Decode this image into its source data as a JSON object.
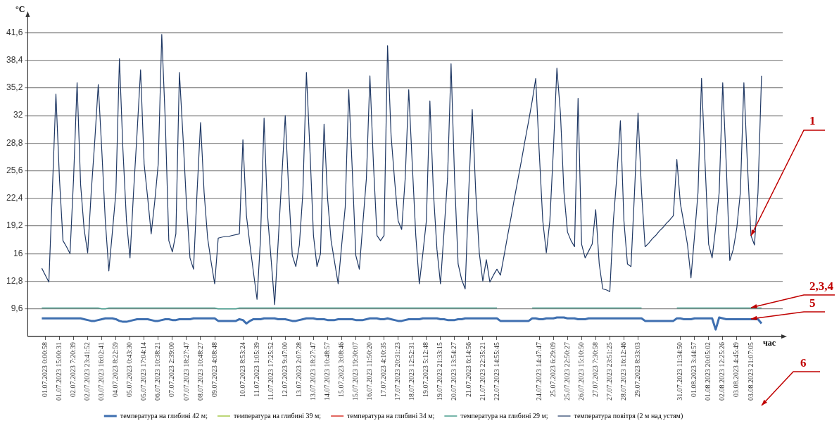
{
  "chart_data": {
    "type": "line",
    "ylabel": "°C",
    "xlabel": "час",
    "ylim": [
      6.4,
      43.6
    ],
    "yticks": [
      {
        "value": 9.6,
        "label": "9,6"
      },
      {
        "value": 12.8,
        "label": "12,8"
      },
      16,
      {
        "value": 19.2,
        "label": "19,2"
      },
      {
        "value": 22.4,
        "label": "22,4"
      },
      {
        "value": 25.6,
        "label": "25,6"
      },
      {
        "value": 28.8,
        "label": "28,8"
      },
      32,
      {
        "value": 35.2,
        "label": "35,2"
      },
      {
        "value": 38.4,
        "label": "38,4"
      },
      {
        "value": 41.6,
        "label": "41,6"
      }
    ],
    "categories": [
      null,
      null,
      null,
      null,
      null,
      "01.07.2023 0:00:58",
      null,
      null,
      null,
      "01.07.2023 15:00:31",
      null,
      null,
      null,
      "02.07.2023 7:20:39",
      null,
      null,
      null,
      "02.07.2023 23:41:52",
      null,
      null,
      null,
      "03.07.2023 16:02:41",
      null,
      null,
      null,
      "04.07.2023 8:22:59",
      null,
      null,
      null,
      "05.07.2023 0:43:30",
      null,
      null,
      null,
      "05.07.2023 17:04:14",
      null,
      null,
      null,
      "06.07.2023 10:38:21",
      null,
      null,
      null,
      "07.07.2023 2:39:00",
      null,
      null,
      null,
      "07.07.2023 18:27:47",
      null,
      null,
      null,
      "08.07.2023 10:48:27",
      null,
      null,
      null,
      "09.07.2023 4:08:48",
      null,
      null,
      null,
      null,
      null,
      null,
      null,
      "10.07.2023 8:53:24",
      null,
      null,
      null,
      "11.07.2023 1:05:39",
      null,
      null,
      null,
      "11.07.2023 17:25:52",
      null,
      null,
      null,
      "12.07.2023 9:47:00",
      null,
      null,
      null,
      "13.07.2023 2:07:28",
      null,
      null,
      null,
      "13.07.2023 18:27:47",
      null,
      null,
      null,
      "14.07.2023 10:48:57",
      null,
      null,
      null,
      "15.07.2023 3:08:46",
      null,
      null,
      null,
      "15.07.2023 19:30:07",
      null,
      null,
      null,
      "16.07.2023 11:50:20",
      null,
      null,
      null,
      "17.07.2023 4:10:35",
      null,
      null,
      null,
      "17.07.2023 20:31:23",
      null,
      null,
      null,
      "18.07.2023 12:52:31",
      null,
      null,
      null,
      "19.07.2023 5:12:48",
      null,
      null,
      null,
      "19.07.2023 21:33:15",
      null,
      null,
      null,
      "20.07.2023 13:54:27",
      null,
      null,
      null,
      "21.07.2023 6:14:56",
      null,
      null,
      null,
      "21.07.2023 22:35:21",
      null,
      null,
      null,
      "22.07.2023 14:55:45",
      null,
      null,
      null,
      null,
      null,
      null,
      null,
      null,
      null,
      null,
      null,
      "24.07.2023 14:47:47",
      null,
      null,
      null,
      "25.07.2023 6:29:09",
      null,
      null,
      null,
      "25.07.2023 22:50:27",
      null,
      null,
      null,
      "26.07.2023 15:10:50",
      null,
      null,
      null,
      "27.07.2023 7:30:58",
      null,
      null,
      null,
      "27.07.2023 23:51:25",
      null,
      null,
      null,
      "28.07.2023 16:12:46",
      null,
      null,
      null,
      "29.07.2023 8:33:03",
      null,
      null,
      null,
      null,
      null,
      null,
      null,
      null,
      null,
      null,
      null,
      "31.07.2023 11:34:50",
      null,
      null,
      null,
      "01.08.2023 3:44:57",
      null,
      null,
      null,
      "01.08.2023 20:05:02",
      null,
      null,
      null,
      "02.08.2023 12:25:26",
      null,
      null,
      null,
      "03.08.2023 4:45:49",
      null,
      null,
      null,
      "03.08.2023 21:07:05",
      null,
      null,
      null,
      null,
      null,
      null,
      null,
      null,
      null
    ],
    "grid": "y",
    "legend": "bottom",
    "marker": "none",
    "series": [
      {
        "name": "температура на глибині 42 м;",
        "color": "#3e6fb0",
        "values": [
          null,
          null,
          null,
          null,
          8.5,
          8.5,
          8.5,
          8.5,
          8.5,
          8.5,
          8.5,
          8.5,
          8.5,
          8.5,
          8.5,
          8.5,
          8.4,
          8.3,
          8.2,
          8.2,
          8.3,
          8.4,
          8.5,
          8.5,
          8.5,
          8.4,
          8.2,
          8.1,
          8.1,
          8.2,
          8.3,
          8.4,
          8.4,
          8.4,
          8.4,
          8.3,
          8.2,
          8.2,
          8.3,
          8.4,
          8.4,
          8.3,
          8.3,
          8.4,
          8.4,
          8.4,
          8.4,
          8.5,
          8.5,
          8.5,
          8.5,
          8.5,
          8.5,
          8.5,
          8.2,
          8.2,
          8.2,
          8.2,
          8.2,
          8.2,
          8.4,
          8.3,
          7.9,
          8.2,
          8.4,
          8.4,
          8.4,
          8.5,
          8.5,
          8.5,
          8.5,
          8.4,
          8.4,
          8.4,
          8.3,
          8.2,
          8.2,
          8.3,
          8.4,
          8.5,
          8.5,
          8.5,
          8.4,
          8.4,
          8.4,
          8.3,
          8.3,
          8.3,
          8.4,
          8.4,
          8.4,
          8.4,
          8.4,
          8.3,
          8.3,
          8.3,
          8.4,
          8.5,
          8.5,
          8.5,
          8.4,
          8.4,
          8.5,
          8.4,
          8.3,
          8.2,
          8.2,
          8.3,
          8.4,
          8.4,
          8.4,
          8.4,
          8.5,
          8.5,
          8.5,
          8.5,
          8.5,
          8.4,
          8.4,
          8.3,
          8.3,
          8.3,
          8.4,
          8.4,
          8.5,
          8.5,
          8.5,
          8.5,
          8.5,
          8.5,
          8.5,
          8.5,
          8.5,
          8.5,
          8.2,
          8.2,
          8.2,
          8.2,
          8.2,
          8.2,
          8.2,
          8.2,
          8.2,
          8.5,
          8.5,
          8.4,
          8.4,
          8.5,
          8.5,
          8.5,
          8.6,
          8.6,
          8.6,
          8.5,
          8.5,
          8.5,
          8.4,
          8.4,
          8.4,
          8.5,
          8.5,
          8.5,
          8.5,
          8.5,
          8.5,
          8.5,
          8.5,
          8.5,
          8.5,
          8.5,
          8.5,
          8.5,
          8.5,
          8.5,
          8.5,
          8.2,
          8.2,
          8.2,
          8.2,
          8.2,
          8.2,
          8.2,
          8.2,
          8.2,
          8.5,
          8.5,
          8.4,
          8.4,
          8.4,
          8.5,
          8.5,
          8.5,
          8.5,
          8.5,
          8.5,
          7.2,
          8.6,
          8.5,
          8.4,
          8.4,
          8.4,
          8.4,
          8.4,
          8.4,
          8.4,
          8.4,
          8.4,
          8.4,
          7.9,
          null,
          null,
          null,
          null,
          null,
          null
        ]
      },
      {
        "name": "температура на глибині 39 м;",
        "color": "#a6c94a",
        "values": [
          null,
          null,
          null,
          null,
          null,
          null,
          null,
          null,
          null,
          null,
          null,
          null,
          null,
          null,
          null,
          null,
          null,
          null,
          null,
          null,
          null,
          null,
          null,
          null,
          null,
          null,
          null,
          null,
          null,
          null,
          null,
          null,
          null,
          null,
          null,
          null,
          null,
          null,
          null,
          null,
          null,
          null,
          null,
          null,
          null,
          null,
          null,
          null,
          null,
          null,
          null,
          null,
          null,
          null,
          null,
          null,
          null,
          null,
          null,
          null,
          null,
          null,
          null,
          null,
          null,
          null,
          null,
          null,
          null,
          null,
          null,
          null,
          null,
          null,
          null,
          null,
          null,
          null,
          null,
          null,
          null,
          null,
          null,
          null,
          null,
          null,
          null,
          null,
          null,
          null,
          null,
          null,
          null,
          null,
          null,
          null,
          null,
          null,
          null,
          null,
          null,
          null,
          null,
          null,
          null,
          null,
          null,
          null,
          null,
          null,
          null,
          null,
          null,
          null,
          null,
          null,
          null,
          null,
          null,
          null,
          null,
          null,
          null,
          null,
          null,
          null,
          null,
          null,
          null,
          null,
          null,
          null,
          null,
          null,
          null,
          null,
          null,
          null,
          null,
          null,
          null,
          null,
          null,
          null,
          null,
          null,
          null,
          null,
          null,
          null,
          null,
          null,
          null,
          null,
          null,
          null,
          null,
          null,
          null,
          null,
          null,
          null,
          null,
          null,
          null,
          null,
          null,
          null,
          null,
          null,
          null,
          null,
          null,
          null,
          null,
          null,
          null,
          null,
          null,
          null,
          null,
          null,
          null,
          null,
          null,
          null,
          null,
          null,
          null,
          null,
          null,
          null,
          null,
          null,
          null,
          null,
          null,
          null,
          null,
          null,
          null,
          null,
          null,
          null,
          null,
          null,
          null,
          null,
          null,
          null,
          null,
          null,
          null,
          null,
          null
        ]
      },
      {
        "name": "температура на глибині 34 м;",
        "color": "#d9342b",
        "values": [
          null,
          null,
          null,
          null,
          null,
          null,
          null,
          null,
          null,
          null,
          null,
          null,
          null,
          null,
          null,
          null,
          null,
          null,
          null,
          null,
          null,
          null,
          null,
          null,
          null,
          null,
          null,
          null,
          null,
          null,
          null,
          null,
          null,
          null,
          null,
          null,
          null,
          null,
          null,
          null,
          null,
          null,
          null,
          null,
          null,
          null,
          null,
          null,
          null,
          null,
          null,
          null,
          null,
          null,
          null,
          null,
          null,
          null,
          null,
          null,
          null,
          null,
          null,
          null,
          null,
          null,
          null,
          null,
          null,
          null,
          null,
          null,
          null,
          null,
          null,
          null,
          null,
          null,
          null,
          null,
          null,
          null,
          null,
          null,
          null,
          null,
          null,
          null,
          null,
          null,
          null,
          null,
          null,
          null,
          null,
          null,
          null,
          null,
          null,
          null,
          null,
          null,
          null,
          null,
          null,
          null,
          null,
          null,
          null,
          null,
          null,
          null,
          null,
          null,
          null,
          null,
          null,
          null,
          null,
          null,
          null,
          null,
          null,
          null,
          null,
          null,
          null,
          null,
          null,
          null,
          null,
          null,
          null,
          null,
          null,
          null,
          null,
          null,
          null,
          null,
          null,
          null,
          null,
          null,
          null,
          null,
          null,
          null,
          null,
          null,
          null,
          null,
          null,
          null,
          null,
          null,
          null,
          null,
          null,
          null,
          null,
          null,
          null,
          null,
          null,
          null,
          null,
          null,
          null,
          null,
          null,
          null,
          null,
          null,
          null,
          null,
          null,
          null,
          null,
          null,
          null,
          null,
          null,
          null,
          null,
          null,
          null,
          null,
          null,
          null,
          null,
          null,
          null,
          null,
          null,
          null,
          null,
          null,
          null,
          null,
          null,
          null,
          null,
          null,
          null,
          null,
          null,
          null,
          null,
          null,
          null,
          null,
          null,
          null,
          null
        ]
      },
      {
        "name": "температура на глибині 29 м;",
        "color": "#4a9e8e",
        "values": [
          null,
          null,
          null,
          null,
          9.7,
          9.7,
          9.7,
          9.7,
          9.7,
          9.7,
          9.7,
          9.7,
          9.7,
          9.7,
          9.7,
          9.7,
          9.7,
          9.7,
          9.7,
          9.7,
          9.7,
          9.6,
          9.6,
          9.7,
          9.7,
          9.7,
          9.7,
          9.7,
          9.7,
          9.7,
          9.7,
          9.7,
          9.7,
          9.7,
          9.7,
          9.7,
          9.7,
          9.7,
          9.7,
          9.7,
          9.7,
          9.7,
          9.7,
          9.7,
          9.7,
          9.7,
          9.7,
          9.7,
          9.7,
          9.7,
          9.7,
          9.7,
          9.7,
          9.7,
          9.6,
          9.6,
          9.6,
          9.6,
          9.6,
          9.6,
          9.7,
          9.7,
          9.7,
          9.7,
          9.7,
          9.7,
          9.7,
          9.7,
          9.7,
          9.7,
          9.7,
          9.7,
          9.7,
          9.7,
          9.7,
          9.7,
          9.7,
          9.7,
          9.7,
          9.7,
          9.7,
          9.7,
          9.7,
          9.7,
          9.7,
          9.7,
          9.7,
          9.7,
          9.7,
          9.7,
          9.7,
          9.7,
          9.7,
          9.7,
          9.7,
          9.7,
          9.7,
          9.7,
          9.7,
          9.7,
          9.7,
          9.7,
          9.7,
          9.7,
          9.7,
          9.7,
          9.7,
          9.7,
          9.7,
          9.7,
          9.7,
          9.7,
          9.7,
          9.7,
          9.7,
          9.7,
          9.7,
          9.7,
          9.7,
          9.7,
          9.7,
          9.7,
          9.7,
          9.7,
          9.7,
          9.7,
          9.7,
          9.7,
          9.7,
          9.7,
          9.7,
          9.7,
          9.7,
          9.7,
          null,
          null,
          null,
          null,
          null,
          null,
          null,
          null,
          null,
          9.7,
          9.7,
          9.7,
          9.7,
          9.7,
          9.7,
          9.7,
          9.7,
          9.7,
          9.7,
          9.7,
          9.7,
          9.7,
          9.7,
          9.7,
          9.7,
          9.7,
          9.7,
          9.7,
          9.7,
          9.7,
          9.7,
          9.7,
          9.7,
          9.7,
          9.7,
          9.7,
          9.7,
          9.7,
          9.7,
          9.7,
          9.7,
          null,
          null,
          null,
          null,
          null,
          null,
          null,
          null,
          null,
          9.7,
          9.7,
          9.7,
          9.7,
          9.7,
          9.7,
          9.7,
          9.7,
          9.7,
          9.7,
          9.7,
          9.7,
          9.7,
          9.7,
          9.7,
          9.7,
          9.7,
          9.7,
          9.7,
          9.7,
          9.7,
          9.7,
          9.7,
          9.7,
          9.7,
          null,
          null,
          null,
          null,
          null,
          null
        ]
      },
      {
        "name": "температура повітря (2 м над устям)",
        "color": "#1f3864",
        "values": [
          null,
          null,
          null,
          null,
          14.3,
          13.5,
          12.7,
          23.4,
          34.5,
          24.7,
          17.5,
          16.8,
          16.0,
          24.7,
          35.8,
          24.0,
          18.8,
          16.1,
          23.1,
          29.0,
          35.6,
          28.0,
          19.8,
          14.0,
          18.5,
          23.1,
          38.6,
          28.0,
          19.8,
          15.5,
          23.1,
          30.0,
          37.3,
          26.4,
          22.5,
          18.3,
          22.0,
          26.4,
          41.4,
          31.4,
          17.5,
          16.2,
          18.3,
          37.0,
          29.7,
          21.8,
          15.5,
          14.2,
          23.1,
          31.2,
          23.1,
          17.8,
          15.0,
          12.5,
          17.8,
          17.9,
          18.0,
          18.0,
          18.1,
          18.2,
          18.3,
          29.2,
          20.4,
          17.0,
          13.8,
          10.7,
          17.8,
          31.7,
          20.4,
          15.3,
          10.1,
          17.4,
          24.7,
          32.0,
          23.1,
          15.8,
          14.5,
          17.0,
          23.1,
          37.0,
          28.0,
          18.1,
          14.5,
          16.0,
          31.0,
          22.4,
          17.5,
          15.0,
          12.5,
          17.0,
          21.4,
          35.0,
          25.7,
          15.8,
          14.2,
          19.5,
          24.7,
          36.6,
          26.4,
          18.1,
          17.5,
          18.1,
          40.1,
          29.7,
          24.5,
          19.8,
          18.8,
          24.7,
          35.0,
          26.4,
          18.1,
          12.5,
          16.0,
          19.8,
          33.7,
          23.1,
          16.5,
          12.5,
          18.5,
          24.7,
          38.0,
          24.7,
          14.8,
          13.0,
          11.9,
          23.1,
          32.7,
          23.1,
          16.1,
          12.8,
          15.3,
          12.7,
          13.5,
          14.2,
          13.5,
          15.7,
          18.0,
          20.2,
          22.5,
          24.7,
          26.9,
          29.2,
          31.4,
          33.7,
          36.3,
          27.7,
          19.8,
          16.1,
          19.8,
          28.0,
          37.5,
          32.3,
          23.1,
          18.5,
          17.5,
          16.8,
          34.0,
          17.1,
          15.5,
          16.3,
          17.1,
          21.1,
          14.8,
          11.9,
          11.8,
          11.6,
          19.8,
          25.0,
          31.4,
          19.8,
          14.8,
          14.5,
          23.1,
          32.3,
          23.1,
          16.8,
          17.2,
          17.7,
          18.1,
          18.6,
          19.0,
          19.5,
          19.9,
          20.4,
          26.9,
          21.8,
          19.5,
          17.1,
          13.2,
          18.0,
          23.1,
          36.3,
          26.4,
          17.1,
          15.5,
          19.0,
          23.1,
          35.8,
          26.4,
          15.2,
          16.5,
          19.0,
          23.1,
          35.8,
          26.4,
          18.1,
          17.0,
          23.1,
          36.6,
          null,
          null,
          null,
          null,
          null,
          null
        ]
      }
    ],
    "annotations": [
      {
        "text": "1",
        "x": "03.08.2023 21:07:05",
        "y": 18.1
      },
      {
        "text": "2,3,4",
        "x": "03.08.2023 21:07:05",
        "y": 9.7
      },
      {
        "text": "5",
        "x": "03.08.2023 21:07:05",
        "y": 8.4
      },
      "6"
    ]
  }
}
